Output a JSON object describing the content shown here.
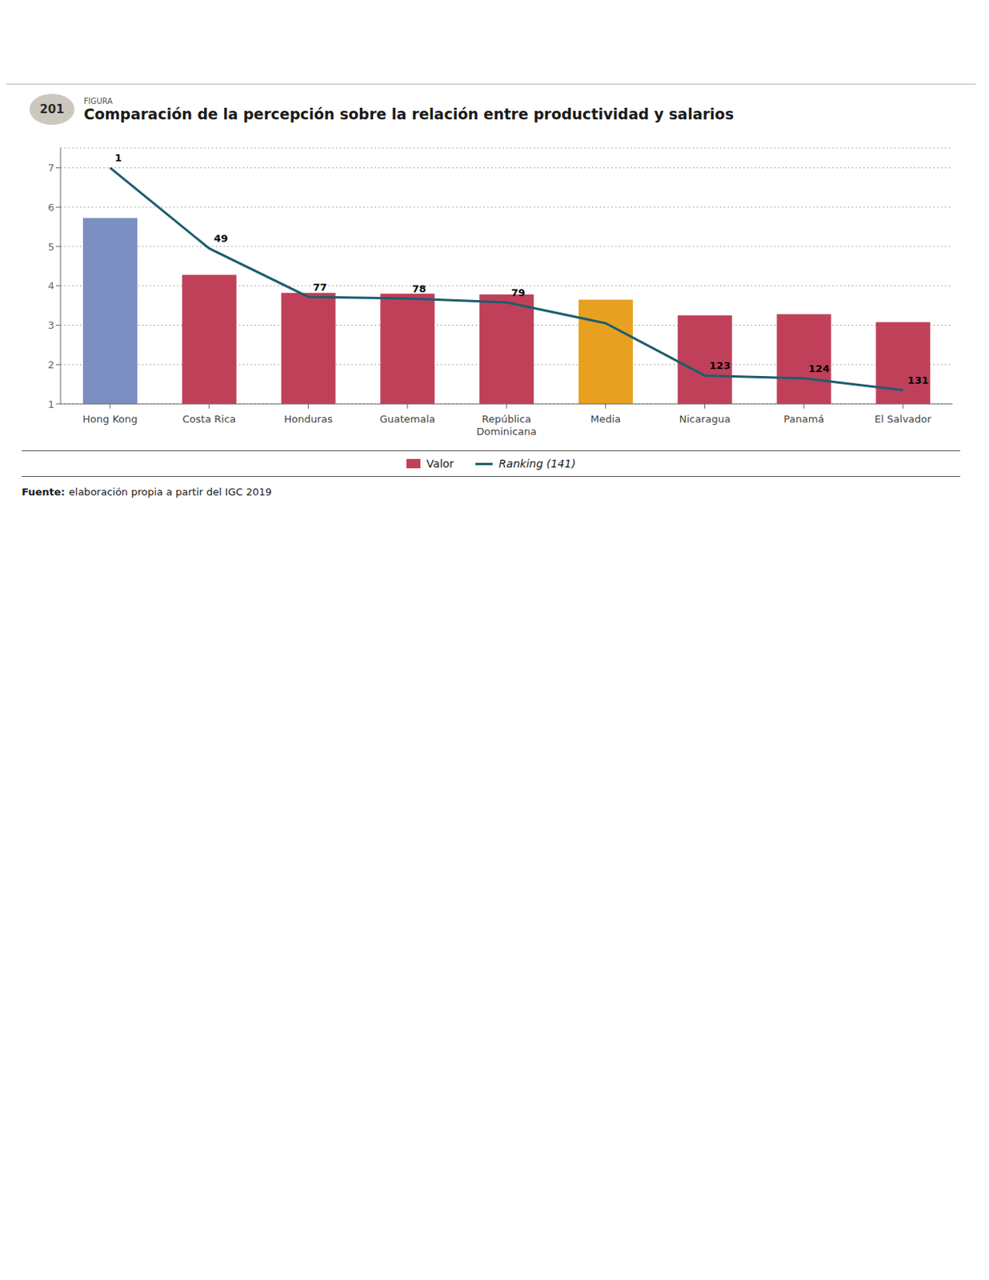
{
  "chart_data": {
    "type": "bar",
    "title": "Comparación de la percepción sobre la relación entre productividad y salarios",
    "figure_label": "FIGURA",
    "figure_number": "201",
    "source_label": "Fuente:",
    "source": "elaboración propia a partir del IGC 2019",
    "categories": [
      "Hong Kong",
      "Costa Rica",
      "Honduras",
      "Guatemala",
      "República\nDominicana",
      "Media",
      "Nicaragua",
      "Panamá",
      "El Salvador"
    ],
    "series": [
      {
        "name": "Valor",
        "type": "bar",
        "color": "#c0405a",
        "colors": [
          "#7b8fc2",
          "#c0405a",
          "#c0405a",
          "#c0405a",
          "#c0405a",
          "#e8a020",
          "#c0405a",
          "#c0405a",
          "#c0405a"
        ],
        "values": [
          5.72,
          4.28,
          3.82,
          3.8,
          3.78,
          3.65,
          3.25,
          3.28,
          3.08
        ]
      },
      {
        "name": "Ranking (141)",
        "type": "line",
        "color": "#1b5e6e",
        "values": [
          7.0,
          4.95,
          3.72,
          3.68,
          3.58,
          3.05,
          1.72,
          1.65,
          1.35
        ]
      }
    ],
    "annotations": [
      {
        "x": "Hong Kong",
        "text": "1"
      },
      {
        "x": "Costa Rica",
        "text": "49"
      },
      {
        "x": "Honduras",
        "text": "77"
      },
      {
        "x": "Guatemala",
        "text": "78"
      },
      {
        "x": "República\nDominicana",
        "text": "79"
      },
      {
        "x": "Nicaragua",
        "text": "123"
      },
      {
        "x": "Panamá",
        "text": "124"
      },
      {
        "x": "El Salvador",
        "text": "131"
      }
    ],
    "ylim": [
      1,
      7.5
    ],
    "yticks": [
      1,
      2,
      3,
      4,
      5,
      6,
      7
    ],
    "grid": true,
    "legend": "bottom"
  }
}
